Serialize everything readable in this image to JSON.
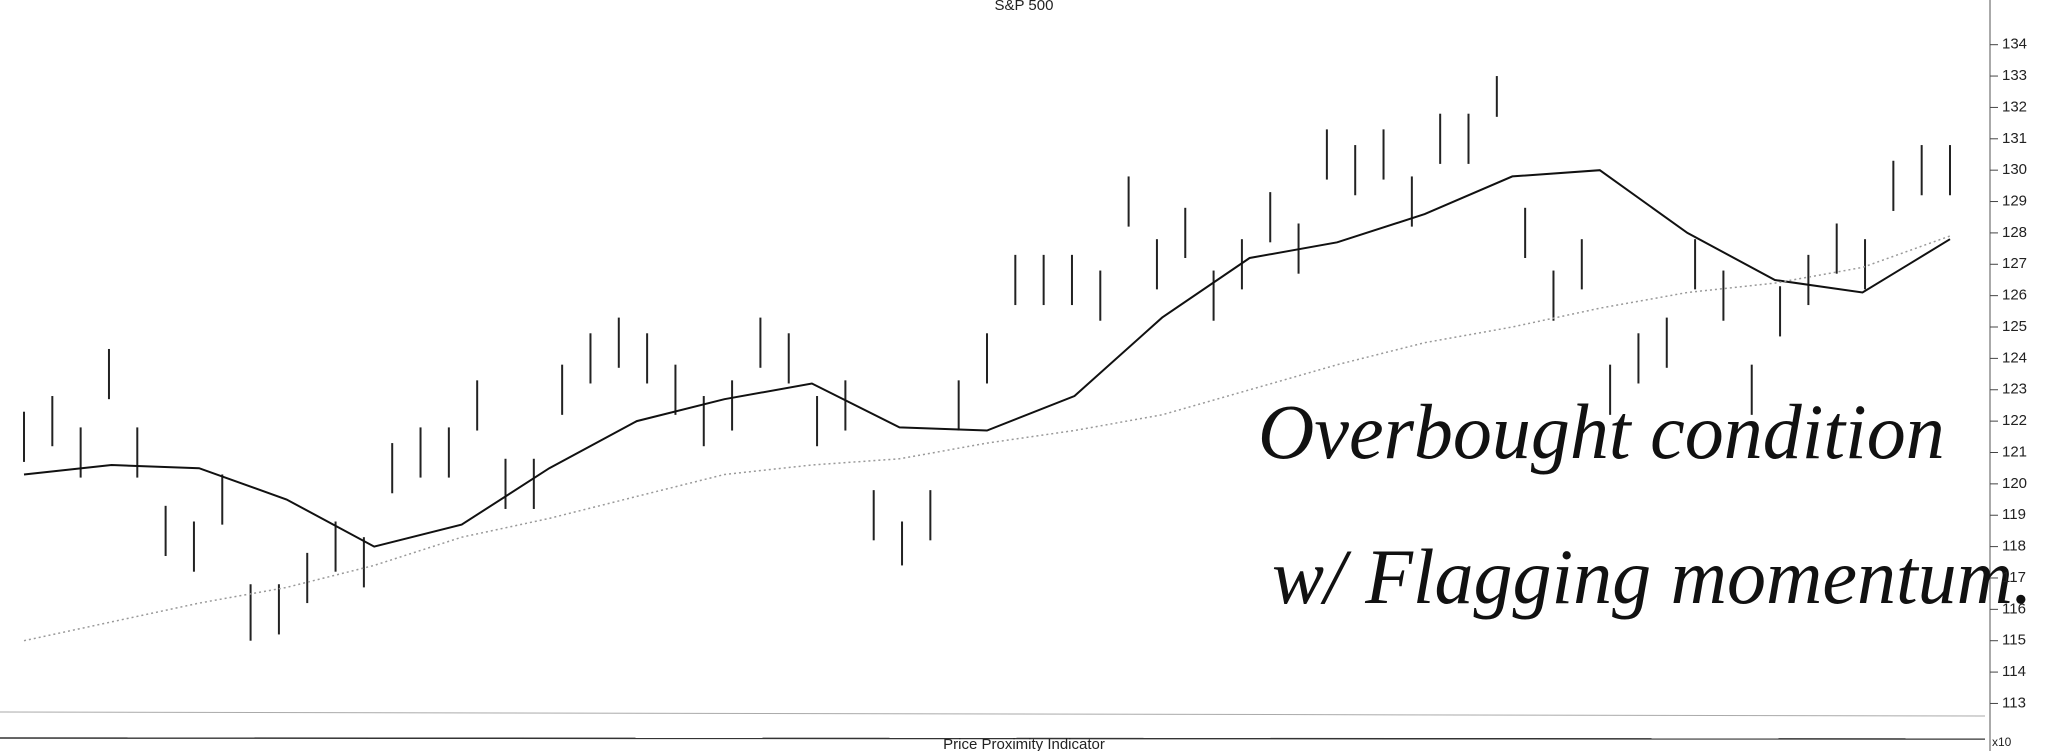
{
  "chart_data": {
    "type": "hilo",
    "title": "S&P 500",
    "subtitle": "Price Proximity Indicator",
    "axis_label": "x10",
    "annotations": [
      "Overbought condition",
      "w/ Flagging momentum."
    ],
    "ylim": [
      112.6,
      134.5
    ],
    "yticks": [
      113,
      114,
      115,
      116,
      117,
      118,
      119,
      120,
      121,
      122,
      123,
      124,
      125,
      126,
      127,
      128,
      129,
      130,
      131,
      132,
      133,
      134
    ],
    "color": "#222222",
    "high": [
      122.3,
      122.8,
      121.8,
      124.3,
      121.8,
      119.3,
      118.8,
      120.3,
      116.8,
      116.8,
      117.8,
      118.8,
      118.3,
      121.3,
      121.8,
      121.8,
      123.3,
      120.8,
      120.8,
      123.8,
      124.8,
      125.3,
      124.8,
      123.8,
      122.8,
      123.3,
      125.3,
      124.8,
      122.8,
      123.3,
      119.8,
      118.8,
      119.8,
      123.3,
      124.8,
      127.3,
      127.3,
      127.3,
      126.8,
      129.8,
      127.8,
      128.8,
      126.8,
      127.8,
      129.3,
      128.3,
      131.3,
      130.8,
      131.3,
      129.8,
      131.8,
      131.8,
      133.0,
      128.8,
      126.8,
      127.8,
      123.8,
      124.8,
      125.3,
      127.8,
      126.8,
      123.8,
      126.3,
      127.3,
      128.3,
      127.8,
      130.3,
      130.8,
      130.8
    ],
    "low": [
      120.7,
      121.2,
      120.2,
      122.7,
      120.2,
      117.7,
      117.2,
      118.7,
      115.0,
      115.2,
      116.2,
      117.2,
      116.7,
      119.7,
      120.2,
      120.2,
      121.7,
      119.2,
      119.2,
      122.2,
      123.2,
      123.7,
      123.2,
      122.2,
      121.2,
      121.7,
      123.7,
      123.2,
      121.2,
      121.7,
      118.2,
      117.4,
      118.2,
      121.7,
      123.2,
      125.7,
      125.7,
      125.7,
      125.2,
      128.2,
      126.2,
      127.2,
      125.2,
      126.2,
      127.7,
      126.7,
      129.7,
      129.2,
      129.7,
      128.2,
      130.2,
      130.2,
      131.7,
      127.2,
      125.2,
      126.2,
      122.2,
      123.2,
      123.7,
      126.2,
      125.2,
      122.2,
      124.7,
      125.7,
      126.7,
      126.2,
      128.7,
      129.2,
      129.2
    ],
    "series": [
      {
        "color": "#111111",
        "dash": false,
        "values": [
          120.3,
          120.6,
          120.5,
          119.5,
          118,
          118.7,
          120.5,
          122,
          122.7,
          123.2,
          121.8,
          121.7,
          122.8,
          125.3,
          127.2,
          127.7,
          128.6,
          129.8,
          130,
          128,
          126.5,
          126.1,
          127.8
        ]
      },
      {
        "color": "#999999",
        "dash": true,
        "values": [
          115,
          115.6,
          116.2,
          116.7,
          117.4,
          118.3,
          118.9,
          119.6,
          120.3,
          120.6,
          120.8,
          121.3,
          121.7,
          122.2,
          123,
          123.8,
          124.5,
          125,
          125.6,
          126.1,
          126.4,
          126.9,
          127.9
        ]
      }
    ]
  }
}
